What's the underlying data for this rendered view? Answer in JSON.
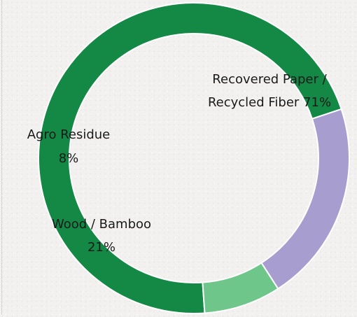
{
  "chart_data": {
    "type": "pie",
    "style": "donut",
    "title": "",
    "categories": [
      "Recovered Paper / Recycled Fiber",
      "Wood / Bamboo",
      "Agro Residue"
    ],
    "values": [
      71,
      21,
      8
    ],
    "unit": "%",
    "colors": [
      "#138945",
      "#a89dcf",
      "#6fc68b"
    ],
    "labels": [
      {
        "line1": "Recovered Paper /",
        "line2": "Recycled Fiber 71%"
      },
      {
        "line1": "Wood / Bamboo",
        "line2": "21%"
      },
      {
        "line1": "Agro Residue",
        "line2": "8%"
      }
    ],
    "legend": "none"
  }
}
